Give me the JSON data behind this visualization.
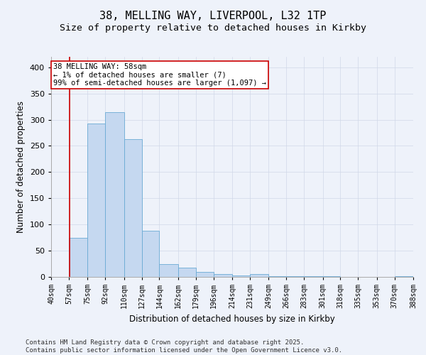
{
  "title_line1": "38, MELLING WAY, LIVERPOOL, L32 1TP",
  "title_line2": "Size of property relative to detached houses in Kirkby",
  "xlabel": "Distribution of detached houses by size in Kirkby",
  "ylabel": "Number of detached properties",
  "bin_edges": [
    40,
    57,
    75,
    92,
    110,
    127,
    144,
    162,
    179,
    196,
    214,
    231,
    249,
    266,
    283,
    301,
    318,
    335,
    353,
    370,
    388
  ],
  "bar_heights": [
    0,
    75,
    293,
    315,
    263,
    88,
    25,
    18,
    10,
    5,
    3,
    5,
    2,
    1,
    2,
    1,
    0,
    0,
    0,
    1
  ],
  "bar_color": "#c5d8f0",
  "bar_edgecolor": "#6aaad4",
  "property_size": 58,
  "property_line_color": "#cc0000",
  "annotation_text": "38 MELLING WAY: 58sqm\n← 1% of detached houses are smaller (7)\n99% of semi-detached houses are larger (1,097) →",
  "annotation_box_color": "#ffffff",
  "annotation_box_edgecolor": "#cc0000",
  "ylim": [
    0,
    420
  ],
  "yticks": [
    0,
    50,
    100,
    150,
    200,
    250,
    300,
    350,
    400
  ],
  "grid_color": "#d0d8e8",
  "bg_color": "#eef2fa",
  "footer_line1": "Contains HM Land Registry data © Crown copyright and database right 2025.",
  "footer_line2": "Contains public sector information licensed under the Open Government Licence v3.0.",
  "title_fontsize": 11,
  "subtitle_fontsize": 9.5,
  "tick_label_fontsize": 7,
  "axis_label_fontsize": 8.5,
  "annotation_fontsize": 7.5,
  "footer_fontsize": 6.5
}
